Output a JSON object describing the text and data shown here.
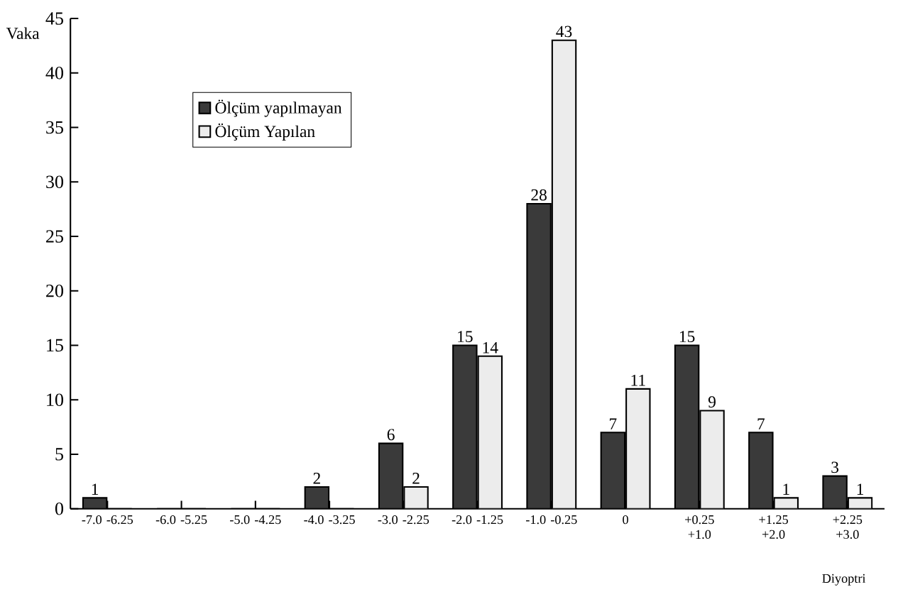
{
  "chart_data": {
    "type": "bar",
    "ylabel": "Vaka",
    "xlabel": "Diyoptri",
    "categories": [
      "-7.0 -6.25",
      "-6.0 -5.25",
      "-5.0 -4.25",
      "-4.0 -3.25",
      "-3.0 -2.25",
      "-2.0 -1.25",
      "-1.0 -0.25",
      "0",
      "+0.25 +1.0",
      "+1.25 +2.0",
      "+2.25 +3.0"
    ],
    "series": [
      {
        "name": "Ölçüm yapılmayan",
        "color": "#3a3a3a",
        "values": [
          1,
          0,
          0,
          2,
          6,
          15,
          28,
          7,
          15,
          7,
          3
        ],
        "value_labels": [
          "1",
          null,
          null,
          "2",
          "6",
          "15",
          "28",
          "7",
          "15",
          "7",
          "3"
        ]
      },
      {
        "name": "Ölçüm Yapılan",
        "color": "#ececec",
        "values": [
          0,
          0,
          0,
          0,
          2,
          14,
          43,
          11,
          9,
          1,
          1
        ],
        "value_labels": [
          null,
          null,
          null,
          null,
          "2",
          "14",
          "43",
          "11",
          "9",
          "1",
          "1"
        ]
      }
    ],
    "ylim": [
      0,
      45
    ],
    "yticks": [
      0,
      5,
      10,
      15,
      20,
      25,
      30,
      35,
      40,
      45
    ],
    "legend": "top left",
    "grid": false
  }
}
